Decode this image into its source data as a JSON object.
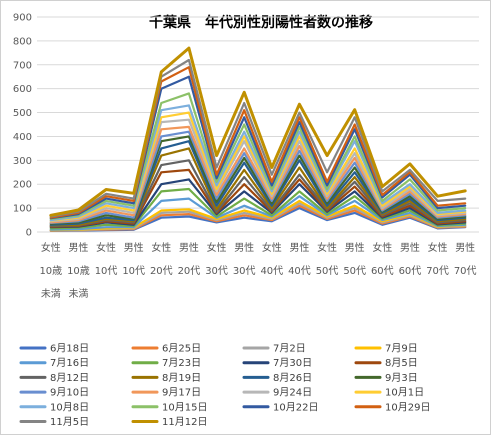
{
  "chart_data": {
    "type": "line",
    "title": "千葉県　年代別性別陽性者数の推移",
    "ylim": [
      0,
      900
    ],
    "yticks": [
      "0",
      "100",
      "200",
      "300",
      "400",
      "500",
      "600",
      "700",
      "800",
      "900"
    ],
    "grid": true,
    "legend_position": "bottom",
    "categories": [
      [
        "女性",
        "10歳",
        "未満"
      ],
      [
        "男性",
        "10歳",
        "未満"
      ],
      [
        "女性",
        "10代"
      ],
      [
        "男性",
        "10代"
      ],
      [
        "女性",
        "20代"
      ],
      [
        "男性",
        "20代"
      ],
      [
        "女性",
        "30代"
      ],
      [
        "男性",
        "30代"
      ],
      [
        "女性",
        "40代"
      ],
      [
        "男性",
        "40代"
      ],
      [
        "女性",
        "50代"
      ],
      [
        "男性",
        "50代"
      ],
      [
        "女性",
        "60代"
      ],
      [
        "男性",
        "60代"
      ],
      [
        "女性",
        "70代"
      ],
      [
        "男性",
        "70代"
      ]
    ],
    "series": [
      {
        "name": "6月18日",
        "color": "#4472C4",
        "values": [
          5,
          6,
          8,
          9,
          60,
          65,
          40,
          60,
          45,
          100,
          50,
          80,
          30,
          60,
          15,
          20
        ]
      },
      {
        "name": "6月25日",
        "color": "#ED7D31",
        "values": [
          6,
          7,
          10,
          12,
          70,
          75,
          45,
          70,
          50,
          110,
          55,
          90,
          35,
          65,
          18,
          22
        ]
      },
      {
        "name": "7月2日",
        "color": "#A5A5A5",
        "values": [
          7,
          8,
          12,
          15,
          80,
          85,
          50,
          80,
          55,
          120,
          60,
          100,
          40,
          70,
          20,
          25
        ]
      },
      {
        "name": "7月9日",
        "color": "#FFC000",
        "values": [
          8,
          10,
          15,
          18,
          90,
          95,
          55,
          90,
          60,
          130,
          65,
          110,
          45,
          75,
          22,
          28
        ]
      },
      {
        "name": "7月16日",
        "color": "#5B9BD5",
        "values": [
          10,
          12,
          20,
          20,
          130,
          140,
          60,
          110,
          65,
          150,
          70,
          130,
          50,
          80,
          25,
          30
        ]
      },
      {
        "name": "7月23日",
        "color": "#70AD47",
        "values": [
          15,
          18,
          30,
          25,
          170,
          180,
          65,
          140,
          70,
          170,
          75,
          150,
          55,
          90,
          28,
          35
        ]
      },
      {
        "name": "7月30日",
        "color": "#264478",
        "values": [
          20,
          22,
          40,
          30,
          200,
          220,
          75,
          170,
          80,
          200,
          85,
          170,
          60,
          100,
          32,
          40
        ]
      },
      {
        "name": "8月5日",
        "color": "#9E480E",
        "values": [
          22,
          25,
          45,
          35,
          250,
          260,
          80,
          200,
          85,
          220,
          90,
          190,
          65,
          110,
          35,
          45
        ]
      },
      {
        "name": "8月12日",
        "color": "#636363",
        "values": [
          25,
          28,
          50,
          40,
          280,
          300,
          85,
          230,
          90,
          240,
          95,
          210,
          70,
          120,
          40,
          50
        ]
      },
      {
        "name": "8月19日",
        "color": "#997300",
        "values": [
          28,
          30,
          55,
          45,
          320,
          350,
          95,
          260,
          100,
          270,
          100,
          230,
          75,
          130,
          45,
          55
        ]
      },
      {
        "name": "8月26日",
        "color": "#255E91",
        "values": [
          30,
          35,
          60,
          50,
          350,
          380,
          110,
          290,
          110,
          300,
          110,
          250,
          80,
          140,
          50,
          60
        ]
      },
      {
        "name": "9月3日",
        "color": "#43682B",
        "values": [
          35,
          40,
          70,
          55,
          380,
          400,
          125,
          310,
          120,
          320,
          120,
          270,
          85,
          150,
          55,
          65
        ]
      },
      {
        "name": "9月10日",
        "color": "#698ED0",
        "values": [
          38,
          45,
          80,
          60,
          400,
          420,
          140,
          330,
          130,
          340,
          130,
          290,
          90,
          160,
          60,
          70
        ]
      },
      {
        "name": "9月17日",
        "color": "#F1975A",
        "values": [
          40,
          50,
          90,
          70,
          430,
          440,
          155,
          350,
          140,
          360,
          140,
          310,
          95,
          170,
          65,
          75
        ]
      },
      {
        "name": "9月24日",
        "color": "#B7B7B7",
        "values": [
          45,
          55,
          100,
          80,
          460,
          470,
          170,
          380,
          150,
          380,
          150,
          330,
          100,
          180,
          70,
          80
        ]
      },
      {
        "name": "10月1日",
        "color": "#FFCD33",
        "values": [
          48,
          60,
          110,
          90,
          480,
          500,
          180,
          400,
          160,
          400,
          160,
          350,
          110,
          190,
          75,
          85
        ]
      },
      {
        "name": "10月8日",
        "color": "#7CAFDD",
        "values": [
          50,
          65,
          120,
          100,
          510,
          530,
          195,
          420,
          170,
          420,
          170,
          380,
          120,
          200,
          80,
          90
        ]
      },
      {
        "name": "10月15日",
        "color": "#8CC168",
        "values": [
          55,
          70,
          130,
          110,
          540,
          580,
          210,
          450,
          180,
          440,
          180,
          400,
          130,
          220,
          90,
          100
        ]
      },
      {
        "name": "10月22日",
        "color": "#335AA1",
        "values": [
          58,
          75,
          140,
          120,
          600,
          650,
          225,
          480,
          195,
          460,
          195,
          430,
          145,
          240,
          100,
          110
        ]
      },
      {
        "name": "10月29日",
        "color": "#D26012",
        "values": [
          60,
          80,
          150,
          130,
          630,
          690,
          240,
          510,
          210,
          480,
          210,
          450,
          155,
          250,
          110,
          120
        ]
      },
      {
        "name": "11月5日",
        "color": "#848484",
        "values": [
          65,
          85,
          160,
          140,
          650,
          720,
          270,
          540,
          240,
          500,
          250,
          480,
          170,
          260,
          130,
          140
        ]
      },
      {
        "name": "11月12日",
        "color": "#C09000",
        "values": [
          70,
          92,
          178,
          162,
          670,
          770,
          320,
          585,
          270,
          535,
          320,
          512,
          190,
          285,
          150,
          172
        ]
      }
    ]
  }
}
